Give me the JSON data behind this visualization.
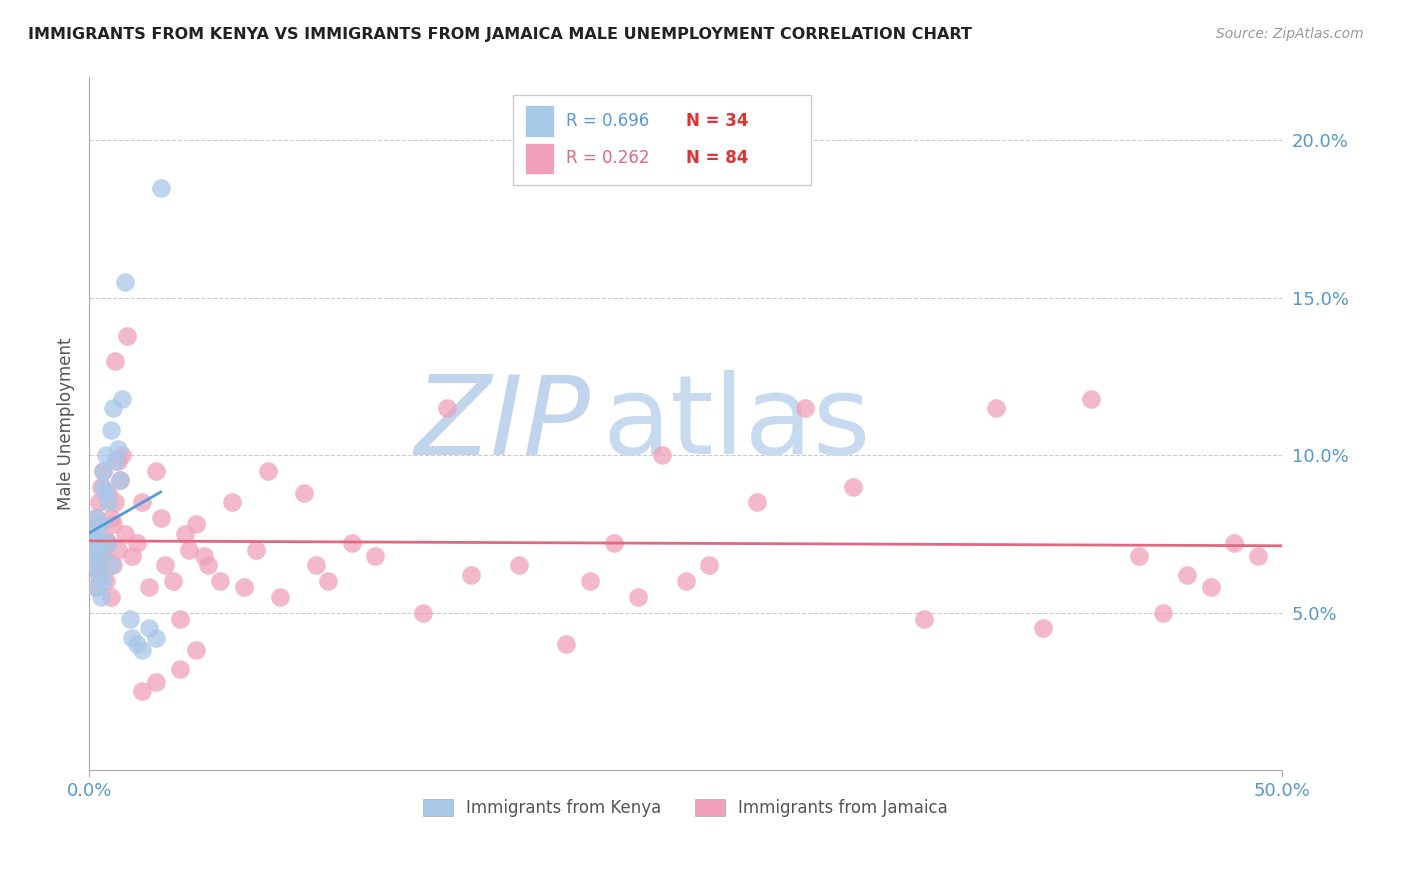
{
  "title": "IMMIGRANTS FROM KENYA VS IMMIGRANTS FROM JAMAICA MALE UNEMPLOYMENT CORRELATION CHART",
  "source": "Source: ZipAtlas.com",
  "ylabel": "Male Unemployment",
  "x_min": 0.0,
  "x_max": 0.5,
  "y_min": 0.0,
  "y_max": 0.22,
  "x_ticks": [
    0.0,
    0.5
  ],
  "x_tick_labels": [
    "0.0%",
    "50.0%"
  ],
  "y_ticks_right": [
    0.05,
    0.1,
    0.15,
    0.2
  ],
  "y_tick_labels_right": [
    "5.0%",
    "10.0%",
    "15.0%",
    "20.0%"
  ],
  "kenya_color": "#a8c8e8",
  "jamaica_color": "#f0a0b8",
  "kenya_line_color": "#5599dd",
  "jamaica_line_color": "#e06880",
  "kenya_R": 0.696,
  "kenya_N": 34,
  "jamaica_R": 0.262,
  "jamaica_N": 84,
  "legend_R_color": "#5599dd",
  "legend_N_color": "#dd3333",
  "watermark_ZIP": "ZIP",
  "watermark_atlas": "atlas",
  "watermark_color": "#c8d8f0",
  "kenya_scatter_x": [
    0.001,
    0.001,
    0.002,
    0.002,
    0.003,
    0.003,
    0.004,
    0.004,
    0.004,
    0.005,
    0.005,
    0.005,
    0.006,
    0.006,
    0.006,
    0.007,
    0.007,
    0.008,
    0.008,
    0.009,
    0.009,
    0.01,
    0.011,
    0.012,
    0.013,
    0.014,
    0.015,
    0.017,
    0.018,
    0.02,
    0.022,
    0.025,
    0.028,
    0.03
  ],
  "kenya_scatter_y": [
    0.068,
    0.072,
    0.065,
    0.075,
    0.058,
    0.08,
    0.07,
    0.062,
    0.073,
    0.055,
    0.068,
    0.078,
    0.06,
    0.09,
    0.095,
    0.088,
    0.1,
    0.072,
    0.085,
    0.065,
    0.108,
    0.115,
    0.098,
    0.102,
    0.092,
    0.118,
    0.155,
    0.048,
    0.042,
    0.04,
    0.038,
    0.045,
    0.042,
    0.185
  ],
  "jamaica_scatter_x": [
    0.001,
    0.001,
    0.002,
    0.002,
    0.003,
    0.003,
    0.003,
    0.004,
    0.004,
    0.004,
    0.005,
    0.005,
    0.005,
    0.006,
    0.006,
    0.007,
    0.007,
    0.008,
    0.008,
    0.009,
    0.009,
    0.01,
    0.01,
    0.011,
    0.011,
    0.012,
    0.012,
    0.013,
    0.014,
    0.015,
    0.016,
    0.018,
    0.02,
    0.022,
    0.025,
    0.028,
    0.03,
    0.032,
    0.035,
    0.038,
    0.04,
    0.042,
    0.045,
    0.048,
    0.05,
    0.055,
    0.06,
    0.065,
    0.07,
    0.075,
    0.08,
    0.09,
    0.095,
    0.1,
    0.11,
    0.12,
    0.14,
    0.15,
    0.16,
    0.18,
    0.2,
    0.21,
    0.22,
    0.23,
    0.24,
    0.25,
    0.26,
    0.28,
    0.3,
    0.32,
    0.35,
    0.38,
    0.4,
    0.42,
    0.44,
    0.45,
    0.46,
    0.47,
    0.48,
    0.49,
    0.045,
    0.038,
    0.028,
    0.022
  ],
  "jamaica_scatter_y": [
    0.068,
    0.075,
    0.072,
    0.065,
    0.08,
    0.058,
    0.073,
    0.078,
    0.062,
    0.085,
    0.09,
    0.07,
    0.063,
    0.068,
    0.095,
    0.073,
    0.06,
    0.088,
    0.072,
    0.08,
    0.055,
    0.078,
    0.065,
    0.13,
    0.085,
    0.098,
    0.07,
    0.092,
    0.1,
    0.075,
    0.138,
    0.068,
    0.072,
    0.085,
    0.058,
    0.095,
    0.08,
    0.065,
    0.06,
    0.048,
    0.075,
    0.07,
    0.078,
    0.068,
    0.065,
    0.06,
    0.085,
    0.058,
    0.07,
    0.095,
    0.055,
    0.088,
    0.065,
    0.06,
    0.072,
    0.068,
    0.05,
    0.115,
    0.062,
    0.065,
    0.04,
    0.06,
    0.072,
    0.055,
    0.1,
    0.06,
    0.065,
    0.085,
    0.115,
    0.09,
    0.048,
    0.115,
    0.045,
    0.118,
    0.068,
    0.05,
    0.062,
    0.058,
    0.072,
    0.068,
    0.038,
    0.032,
    0.028,
    0.025
  ]
}
